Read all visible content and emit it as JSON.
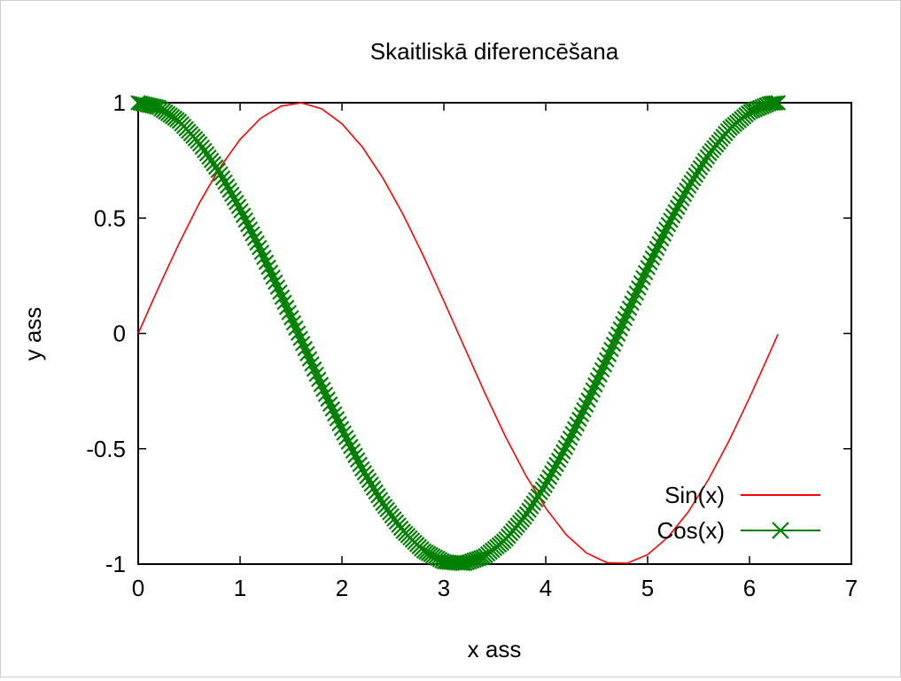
{
  "chart_data": {
    "type": "line",
    "title": "Skaitliskā diferencēšana",
    "xlabel": "x ass",
    "ylabel": "y ass",
    "xlim": [
      0,
      7
    ],
    "ylim": [
      -1,
      1
    ],
    "xticks": [
      "0",
      "1",
      "2",
      "3",
      "4",
      "5",
      "6",
      "7"
    ],
    "yticks": [
      "1",
      "0.5",
      "0",
      "-0.5",
      "-1"
    ],
    "grid": false,
    "legend_position": "bottom-right",
    "series": [
      {
        "name": "Sin(x)",
        "color": "#ff0000",
        "style": "line",
        "x": [
          0,
          0.2,
          0.4,
          0.6,
          0.8,
          1.0,
          1.2,
          1.4,
          1.6,
          1.8,
          2.0,
          2.2,
          2.4,
          2.6,
          2.8,
          3.0,
          3.2,
          3.4,
          3.6,
          3.8,
          4.0,
          4.2,
          4.4,
          4.6,
          4.8,
          5.0,
          5.2,
          5.4,
          5.6,
          5.8,
          6.0,
          6.2,
          6.28
        ],
        "values": [
          0,
          0.199,
          0.389,
          0.565,
          0.717,
          0.841,
          0.932,
          0.985,
          0.9996,
          0.974,
          0.909,
          0.808,
          0.675,
          0.516,
          0.335,
          0.141,
          -0.058,
          -0.256,
          -0.443,
          -0.612,
          -0.757,
          -0.872,
          -0.952,
          -0.994,
          -0.996,
          -0.959,
          -0.883,
          -0.773,
          -0.631,
          -0.465,
          -0.279,
          -0.083,
          -0.003
        ]
      },
      {
        "name": "Cos(x)",
        "color": "#008000",
        "style": "linespoints",
        "marker": "x",
        "x": [
          0,
          0.2,
          0.4,
          0.6,
          0.8,
          1.0,
          1.2,
          1.4,
          1.6,
          1.8,
          2.0,
          2.2,
          2.4,
          2.6,
          2.8,
          3.0,
          3.2,
          3.4,
          3.6,
          3.8,
          4.0,
          4.2,
          4.4,
          4.6,
          4.8,
          5.0,
          5.2,
          5.4,
          5.6,
          5.8,
          6.0,
          6.2,
          6.28
        ],
        "values": [
          1,
          0.98,
          0.921,
          0.825,
          0.697,
          0.54,
          0.362,
          0.17,
          -0.029,
          -0.227,
          -0.416,
          -0.589,
          -0.737,
          -0.857,
          -0.942,
          -0.99,
          -0.998,
          -0.967,
          -0.897,
          -0.791,
          -0.654,
          -0.49,
          -0.307,
          -0.112,
          0.087,
          0.284,
          0.469,
          0.635,
          0.776,
          0.886,
          0.96,
          0.997,
          1.0
        ]
      }
    ]
  }
}
